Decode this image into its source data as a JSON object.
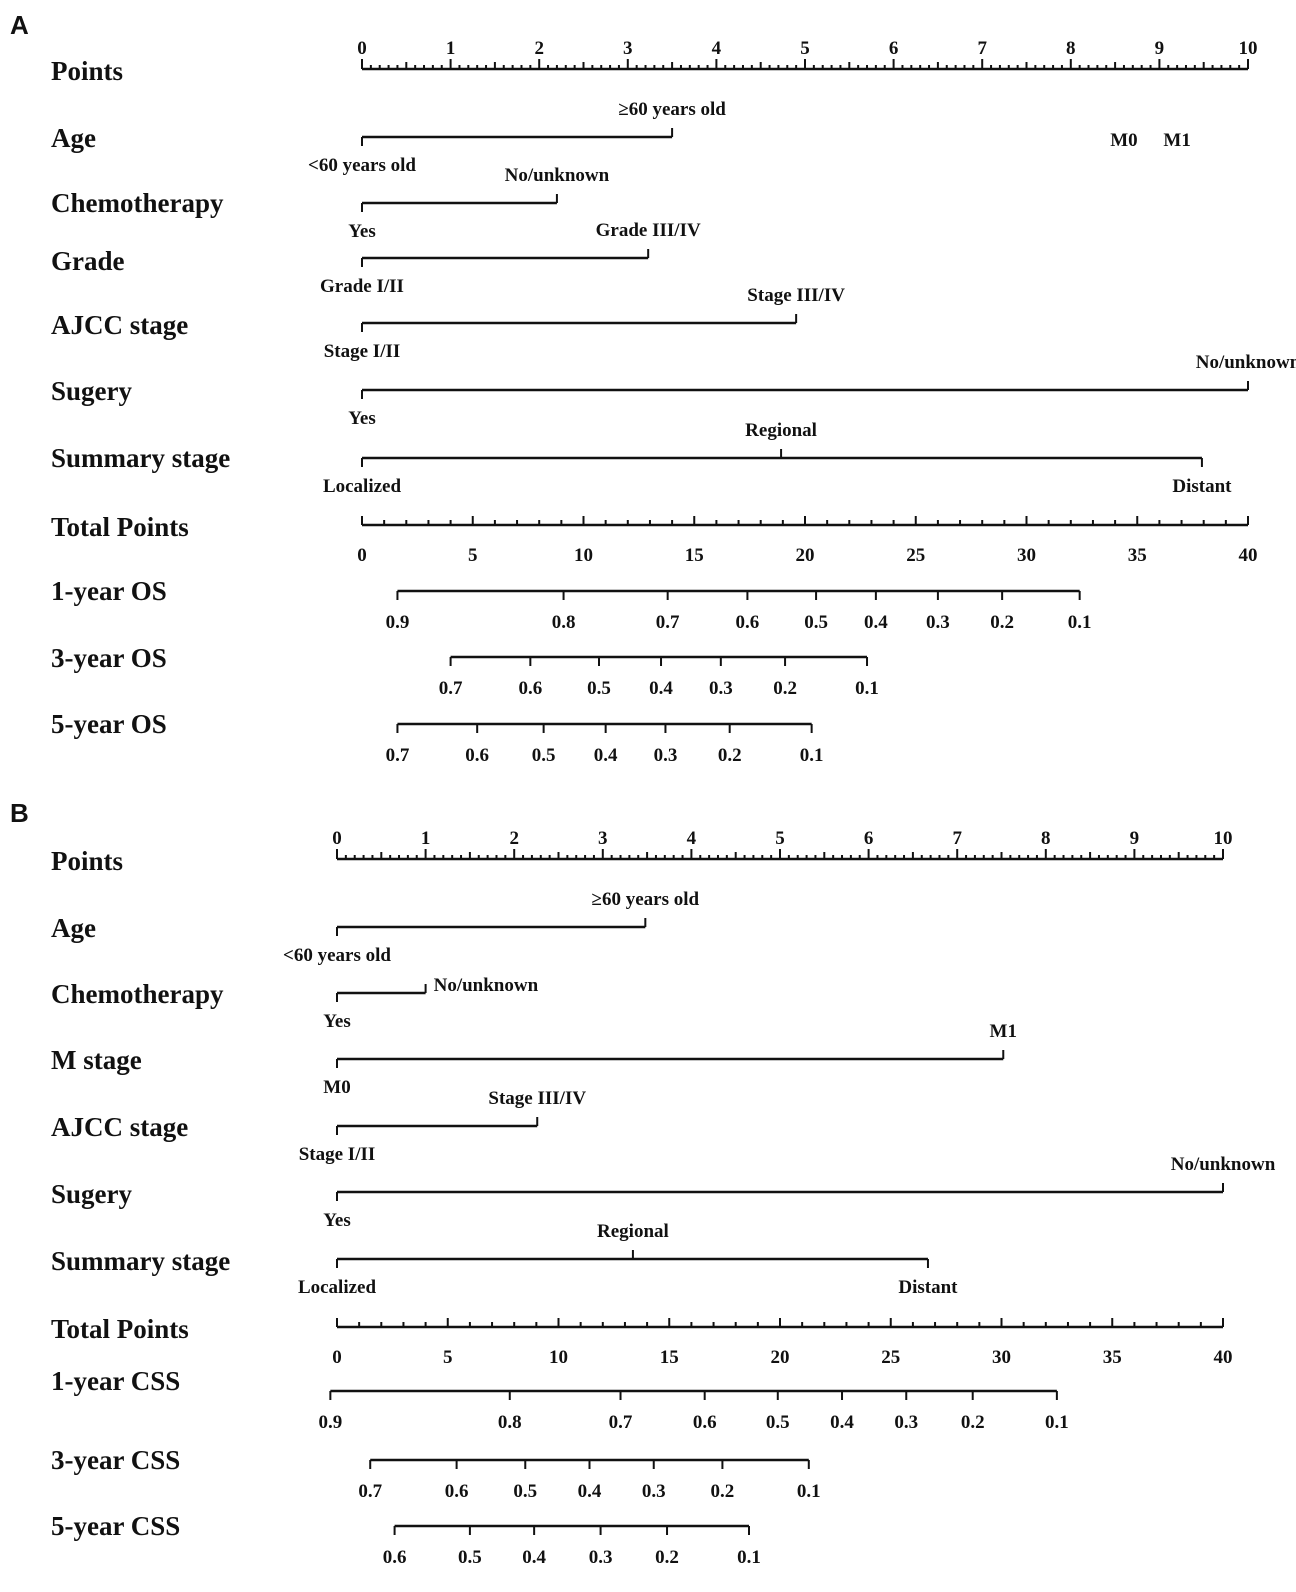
{
  "chart_data": [
    {
      "type": "nomogram",
      "panel_label": "A",
      "points_axis": {
        "label": "Points",
        "range": [
          0,
          10
        ],
        "ticks": [
          "0",
          "1",
          "2",
          "3",
          "4",
          "5",
          "6",
          "7",
          "8",
          "9",
          "10"
        ]
      },
      "predictors": [
        {
          "name": "Age",
          "levels": [
            {
              "label": "<60 years old",
              "points": 0
            },
            {
              "label": "≥60 years old",
              "points": 3.5
            }
          ]
        },
        {
          "name": "Chemotherapy",
          "levels": [
            {
              "label": "Yes",
              "points": 0
            },
            {
              "label": "No/unknown",
              "points": 2.2
            }
          ]
        },
        {
          "name": "Grade",
          "levels": [
            {
              "label": "Grade I/II",
              "points": 0
            },
            {
              "label": "Grade III/IV",
              "points": 3.23
            }
          ]
        },
        {
          "name": "AJCC stage",
          "levels": [
            {
              "label": "Stage I/II",
              "points": 0
            },
            {
              "label": "Stage III/IV",
              "points": 4.9
            }
          ]
        },
        {
          "name": "Sugery",
          "levels": [
            {
              "label": "Yes",
              "points": 0
            },
            {
              "label": "No/unknown",
              "points": 10
            }
          ]
        },
        {
          "name": "Summary stage",
          "levels": [
            {
              "label": "Localized",
              "points": 0
            },
            {
              "label": "Regional",
              "points": 4.73
            },
            {
              "label": "Distant",
              "points": 9.48
            }
          ]
        }
      ],
      "stray_labels": [
        {
          "label": "M0",
          "points": 8.6
        },
        {
          "label": "M1",
          "points": 9.2
        }
      ],
      "total_points_axis": {
        "label": "Total Points",
        "range": [
          0,
          40
        ],
        "ticks": [
          "0",
          "5",
          "10",
          "15",
          "20",
          "25",
          "30",
          "35",
          "40"
        ]
      },
      "survival_axes": [
        {
          "label": "1-year OS",
          "start": 1.6,
          "end": 32.4,
          "ticks": [
            {
              "label": "0.9",
              "total": 1.6
            },
            {
              "label": "0.8",
              "total": 9.1
            },
            {
              "label": "0.7",
              "total": 13.8
            },
            {
              "label": "0.6",
              "total": 17.4
            },
            {
              "label": "0.5",
              "total": 20.5
            },
            {
              "label": "0.4",
              "total": 23.2
            },
            {
              "label": "0.3",
              "total": 26.0
            },
            {
              "label": "0.2",
              "total": 28.9
            },
            {
              "label": "0.1",
              "total": 32.4
            }
          ]
        },
        {
          "label": "3-year OS",
          "start": 4.0,
          "end": 22.8,
          "ticks": [
            {
              "label": "0.7",
              "total": 4.0
            },
            {
              "label": "0.6",
              "total": 7.6
            },
            {
              "label": "0.5",
              "total": 10.7
            },
            {
              "label": "0.4",
              "total": 13.5
            },
            {
              "label": "0.3",
              "total": 16.2
            },
            {
              "label": "0.2",
              "total": 19.1
            },
            {
              "label": "0.1",
              "total": 22.8
            }
          ]
        },
        {
          "label": "5-year OS",
          "start": 1.6,
          "end": 20.3,
          "ticks": [
            {
              "label": "0.7",
              "total": 1.6
            },
            {
              "label": "0.6",
              "total": 5.2
            },
            {
              "label": "0.5",
              "total": 8.2
            },
            {
              "label": "0.4",
              "total": 11.0
            },
            {
              "label": "0.3",
              "total": 13.7
            },
            {
              "label": "0.2",
              "total": 16.6
            },
            {
              "label": "0.1",
              "total": 20.3
            }
          ]
        }
      ]
    },
    {
      "type": "nomogram",
      "panel_label": "B",
      "points_axis": {
        "label": "Points",
        "range": [
          0,
          10
        ],
        "ticks": [
          "0",
          "1",
          "2",
          "3",
          "4",
          "5",
          "6",
          "7",
          "8",
          "9",
          "10"
        ]
      },
      "predictors": [
        {
          "name": "Age",
          "levels": [
            {
              "label": "<60 years old",
              "points": 0
            },
            {
              "label": "≥60 years old",
              "points": 3.48
            }
          ]
        },
        {
          "name": "Chemotherapy",
          "levels": [
            {
              "label": "Yes",
              "points": 0
            },
            {
              "label": "No/unknown",
              "points": 1.0
            }
          ]
        },
        {
          "name": "M stage",
          "levels": [
            {
              "label": "M0",
              "points": 0
            },
            {
              "label": "M1",
              "points": 7.52
            }
          ]
        },
        {
          "name": "AJCC stage",
          "levels": [
            {
              "label": "Stage I/II",
              "points": 0
            },
            {
              "label": "Stage III/IV",
              "points": 2.26
            }
          ]
        },
        {
          "name": "Sugery",
          "levels": [
            {
              "label": "Yes",
              "points": 0
            },
            {
              "label": "No/unknown",
              "points": 10
            }
          ]
        },
        {
          "name": "Summary stage",
          "levels": [
            {
              "label": "Localized",
              "points": 0
            },
            {
              "label": "Regional",
              "points": 3.34
            },
            {
              "label": "Distant",
              "points": 6.67
            }
          ]
        }
      ],
      "stray_labels": [],
      "total_points_axis": {
        "label": "Total Points",
        "range": [
          0,
          40
        ],
        "ticks": [
          "0",
          "5",
          "10",
          "15",
          "20",
          "25",
          "30",
          "35",
          "40"
        ]
      },
      "survival_axes": [
        {
          "label": "1-year CSS",
          "start": -0.3,
          "end": 32.5,
          "ticks": [
            {
              "label": "0.9",
              "total": -0.3
            },
            {
              "label": "0.8",
              "total": 7.8
            },
            {
              "label": "0.7",
              "total": 12.8
            },
            {
              "label": "0.6",
              "total": 16.6
            },
            {
              "label": "0.5",
              "total": 19.9
            },
            {
              "label": "0.4",
              "total": 22.8
            },
            {
              "label": "0.3",
              "total": 25.7
            },
            {
              "label": "0.2",
              "total": 28.7
            },
            {
              "label": "0.1",
              "total": 32.5
            }
          ]
        },
        {
          "label": "3-year CSS",
          "start": 1.5,
          "end": 21.3,
          "ticks": [
            {
              "label": "0.7",
              "total": 1.5
            },
            {
              "label": "0.6",
              "total": 5.4
            },
            {
              "label": "0.5",
              "total": 8.5
            },
            {
              "label": "0.4",
              "total": 11.4
            },
            {
              "label": "0.3",
              "total": 14.3
            },
            {
              "label": "0.2",
              "total": 17.4
            },
            {
              "label": "0.1",
              "total": 21.3
            }
          ]
        },
        {
          "label": "5-year CSS",
          "start": 2.6,
          "end": 18.6,
          "ticks": [
            {
              "label": "0.6",
              "total": 2.6
            },
            {
              "label": "0.5",
              "total": 6.0
            },
            {
              "label": "0.4",
              "total": 8.9
            },
            {
              "label": "0.3",
              "total": 11.9
            },
            {
              "label": "0.2",
              "total": 14.9
            },
            {
              "label": "0.1",
              "total": 18.6
            }
          ]
        }
      ]
    }
  ]
}
